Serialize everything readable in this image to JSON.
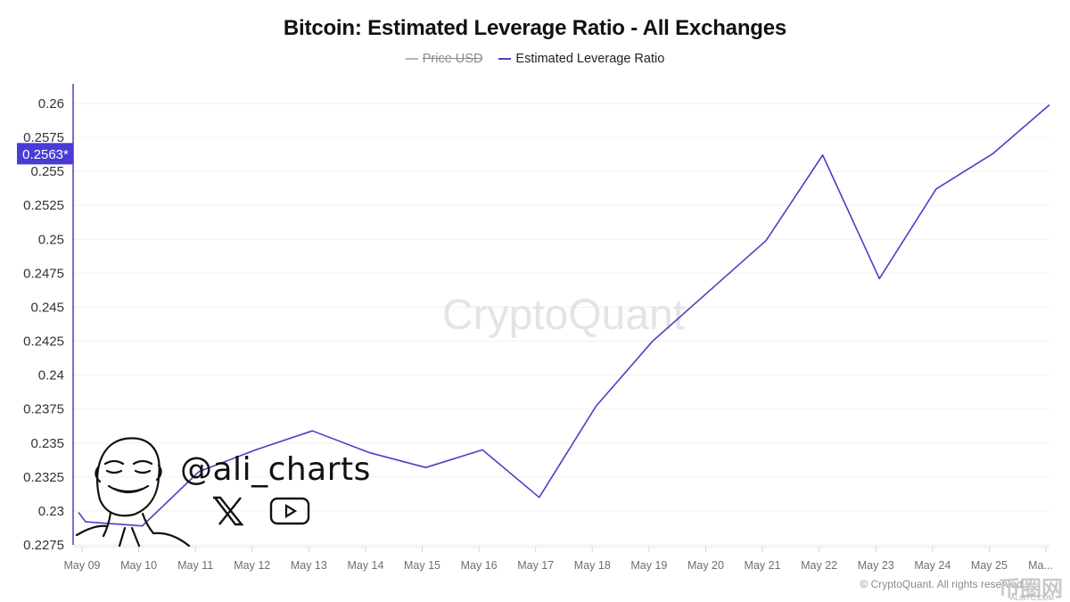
{
  "header": {
    "title": "Bitcoin: Estimated Leverage Ratio - All Exchanges"
  },
  "legend": [
    {
      "label": "Price USD",
      "color": "#b5b5b5",
      "enabled": false
    },
    {
      "label": "Estimated Leverage Ratio",
      "color": "#4b3fc4",
      "enabled": true
    }
  ],
  "watermark": "CryptoQuant",
  "copyright": "© CryptoQuant. All rights reserved.",
  "author": {
    "handle": "@ali_charts",
    "icons": [
      "x-logo-icon",
      "youtube-icon"
    ]
  },
  "site_badge": {
    "text": "币圈网",
    "subtext": "ALIBTC.COM"
  },
  "current_value_label": "0.2563*",
  "colors": {
    "series": "#4b3fc4",
    "highlight_bg": "#4a3bd8",
    "grid": "#f1f1f4",
    "axis": "#4b3fc4"
  },
  "chart_data": {
    "type": "line",
    "title": "Bitcoin: Estimated Leverage Ratio - All Exchanges",
    "xlabel": "",
    "ylabel": "",
    "categories": [
      "May 09",
      "May 10",
      "May 11",
      "May 12",
      "May 13",
      "May 14",
      "May 15",
      "May 16",
      "May 17",
      "May 18",
      "May 19",
      "May 20",
      "May 21",
      "May 22",
      "May 23",
      "May 24",
      "May 25",
      "Ma..."
    ],
    "series": [
      {
        "name": "Estimated Leverage Ratio",
        "start_value": 0.2299,
        "values": [
          0.2292,
          0.2289,
          0.2329,
          0.2345,
          0.2359,
          0.2343,
          0.2332,
          0.2345,
          0.231,
          0.2377,
          0.2425,
          0.2462,
          0.2499,
          0.2562,
          0.2471,
          0.2537,
          0.2563,
          0.2599
        ]
      },
      {
        "name": "Price USD",
        "hidden": true,
        "values": []
      }
    ],
    "yticks": [
      "0.2275",
      "0.23",
      "0.2325",
      "0.235",
      "0.2375",
      "0.24",
      "0.2425",
      "0.245",
      "0.2475",
      "0.25",
      "0.2525",
      "0.255",
      "0.2575",
      "0.26"
    ],
    "ylim": [
      0.2275,
      0.26
    ],
    "grid": true,
    "legend_position": "top-center",
    "highlighted_value": 0.2563
  }
}
